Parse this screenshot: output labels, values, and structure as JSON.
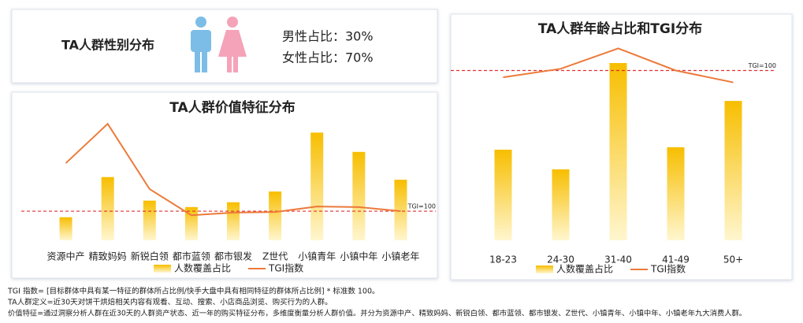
{
  "gender_panel": {
    "title": "TA人群性别分布",
    "male": "男性占比：30%",
    "female": "女性占比：70%"
  },
  "chart_data": [
    {
      "type": "bar",
      "title": "TA人群价值特征分布",
      "categories": [
        "资源中产",
        "精致妈妈",
        "新锐白领",
        "都市蓝领",
        "都市银发",
        "Z世代",
        "小镇青年",
        "小镇中年",
        "小镇老年"
      ],
      "series": [
        {
          "name": "人数覆盖占比",
          "color": "#f7be00",
          "values": [
            4.3,
            11.8,
            7.4,
            6.2,
            7.1,
            9.1,
            20.1,
            16.5,
            11.3
          ]
        },
        {
          "name": "TGI指数",
          "color": "#ec7a3a",
          "type": "line",
          "axis": "y2",
          "values": [
            265,
            400,
            176,
            86,
            95,
            97,
            116,
            114,
            100
          ]
        }
      ],
      "ylim": [
        0,
        25
      ],
      "y2lim": [
        0,
        460
      ],
      "reference_lines": [
        {
          "value": 100,
          "label": "TGI=100",
          "axis": "y2",
          "color": "#e03030"
        }
      ]
    },
    {
      "type": "bar",
      "title": "TA人群年龄占比和TGI分布",
      "categories": [
        "18-23",
        "24-30",
        "31-40",
        "41-49",
        "50+"
      ],
      "series": [
        {
          "name": "人数覆盖占比",
          "color": "#f7be00",
          "values": [
            18.4,
            14.4,
            36,
            18.9,
            28.3
          ]
        },
        {
          "name": "TGI指数",
          "color": "#ec7a3a",
          "type": "line",
          "axis": "y2",
          "values": [
            96,
            101,
            113,
            100,
            93
          ]
        }
      ],
      "ylim": [
        0,
        40
      ],
      "y2lim": [
        0,
        116
      ],
      "reference_lines": [
        {
          "value": 100,
          "label": "TGI=100",
          "axis": "y2",
          "color": "#e03030"
        }
      ]
    }
  ],
  "notes": [
    "TGI 指数= [目标群体中具有某一特征的群体所占比例/快手大盘中具有相同特征的群体所占比例] * 标准数 100。",
    "TA人群定义=近30天对饼干烘焙相关内容有观看、互动、搜索、小店商品浏览、购买行为的人群。",
    "价值特征=通过洞察分析人群在近30天的人群资产状态、近一年的购买特征分布，多维度衡量分析人群价值。并分为资源中产、精致妈妈、新锐白领、都市蓝领、都市银发、Z世代、小镇青年、小镇中年、小镇老年九大消费人群。"
  ]
}
